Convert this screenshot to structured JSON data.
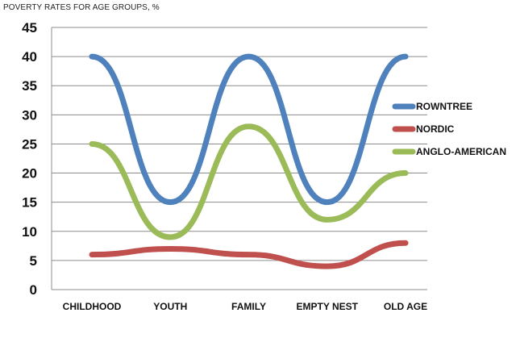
{
  "chart_data": {
    "type": "line",
    "title": "POVERTY RATES FOR AGE GROUPS, %",
    "categories": [
      "CHILDHOOD",
      "YOUTH",
      "FAMILY",
      "EMPTY NEST",
      "OLD AGE"
    ],
    "series": [
      {
        "name": "ROWNTREE",
        "values": [
          40,
          15,
          40,
          15,
          40
        ],
        "color": "#4f81bd"
      },
      {
        "name": "NORDIC",
        "values": [
          6,
          7,
          6,
          4,
          8
        ],
        "color": "#c0504d"
      },
      {
        "name": "ANGLO-AMERICAN",
        "values": [
          25,
          9,
          28,
          12,
          20
        ],
        "color": "#9bbb59"
      }
    ],
    "ylim": [
      0,
      45
    ],
    "yticks": [
      0,
      5,
      10,
      15,
      20,
      25,
      30,
      35,
      40,
      45
    ],
    "grid": true,
    "legend": "right",
    "smooth": true
  }
}
